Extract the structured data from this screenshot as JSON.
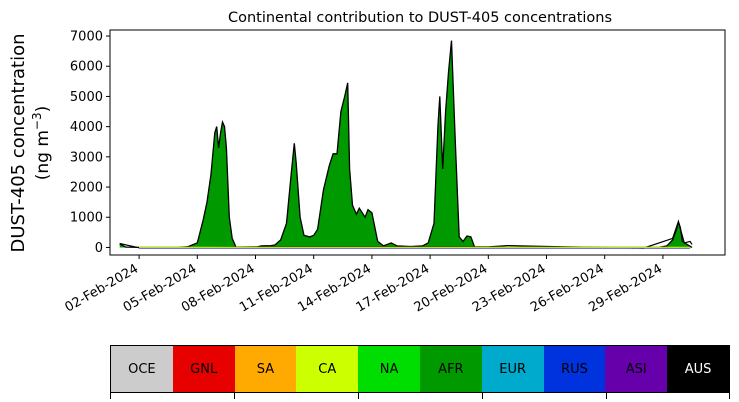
{
  "chart_data": {
    "type": "area",
    "title": "Continental contribution to DUST-405 concentrations",
    "ylabel_main": "DUST-405 concentration",
    "ylabel_unit": "(ng m",
    "ylabel_sup": "−3",
    "ylabel_close": ")",
    "xlabel": "",
    "ylim": [
      -250,
      7200
    ],
    "xlim_days": [
      -0.5,
      31.2
    ],
    "yticks": [
      "0",
      "1000",
      "2000",
      "3000",
      "4000",
      "5000",
      "6000",
      "7000"
    ],
    "ytick_values": [
      0,
      1000,
      2000,
      3000,
      4000,
      5000,
      6000,
      7000
    ],
    "xticks": [
      "02-Feb-2024",
      "05-Feb-2024",
      "08-Feb-2024",
      "11-Feb-2024",
      "14-Feb-2024",
      "17-Feb-2024",
      "20-Feb-2024",
      "23-Feb-2024",
      "26-Feb-2024",
      "29-Feb-2024"
    ],
    "xtick_days": [
      1,
      4,
      7,
      10,
      13,
      16,
      19,
      22,
      25,
      28
    ],
    "series": [
      {
        "name": "AFR",
        "color": "#009900",
        "points": [
          [
            0.0,
            120
          ],
          [
            0.3,
            10
          ],
          [
            1.0,
            0
          ],
          [
            2.0,
            0
          ],
          [
            3.0,
            0
          ],
          [
            3.5,
            20
          ],
          [
            4.0,
            150
          ],
          [
            4.3,
            900
          ],
          [
            4.5,
            1500
          ],
          [
            4.7,
            2400
          ],
          [
            4.9,
            3800
          ],
          [
            5.0,
            4000
          ],
          [
            5.1,
            3300
          ],
          [
            5.2,
            3800
          ],
          [
            5.3,
            4150
          ],
          [
            5.4,
            4000
          ],
          [
            5.5,
            3300
          ],
          [
            5.65,
            1000
          ],
          [
            5.8,
            300
          ],
          [
            6.0,
            0
          ],
          [
            7.0,
            0
          ],
          [
            7.3,
            50
          ],
          [
            7.8,
            60
          ],
          [
            8.0,
            80
          ],
          [
            8.3,
            250
          ],
          [
            8.6,
            800
          ],
          [
            8.85,
            2500
          ],
          [
            9.0,
            3450
          ],
          [
            9.1,
            2800
          ],
          [
            9.3,
            1000
          ],
          [
            9.5,
            400
          ],
          [
            9.8,
            350
          ],
          [
            10.0,
            400
          ],
          [
            10.2,
            600
          ],
          [
            10.5,
            1900
          ],
          [
            10.8,
            2700
          ],
          [
            11.0,
            3100
          ],
          [
            11.2,
            3100
          ],
          [
            11.4,
            4500
          ],
          [
            11.6,
            5000
          ],
          [
            11.75,
            5450
          ],
          [
            11.85,
            2600
          ],
          [
            12.0,
            1400
          ],
          [
            12.2,
            1100
          ],
          [
            12.35,
            1300
          ],
          [
            12.5,
            1150
          ],
          [
            12.65,
            1000
          ],
          [
            12.8,
            1250
          ],
          [
            13.0,
            1150
          ],
          [
            13.3,
            200
          ],
          [
            13.6,
            50
          ],
          [
            14.0,
            150
          ],
          [
            14.3,
            50
          ],
          [
            15.0,
            30
          ],
          [
            15.6,
            50
          ],
          [
            15.9,
            150
          ],
          [
            16.2,
            800
          ],
          [
            16.4,
            4000
          ],
          [
            16.5,
            5000
          ],
          [
            16.65,
            2600
          ],
          [
            16.8,
            4500
          ],
          [
            16.95,
            5800
          ],
          [
            17.1,
            6850
          ],
          [
            17.3,
            3500
          ],
          [
            17.5,
            350
          ],
          [
            17.7,
            200
          ],
          [
            17.9,
            380
          ],
          [
            18.1,
            350
          ],
          [
            18.3,
            0
          ],
          [
            19.0,
            0
          ],
          [
            20.0,
            0
          ],
          [
            21.0,
            0
          ],
          [
            22.0,
            0
          ],
          [
            23.0,
            0
          ],
          [
            24.0,
            0
          ],
          [
            25.0,
            0
          ],
          [
            26.0,
            0
          ],
          [
            27.0,
            0
          ],
          [
            27.8,
            0
          ],
          [
            28.2,
            50
          ],
          [
            28.5,
            250
          ],
          [
            28.7,
            600
          ],
          [
            28.8,
            850
          ],
          [
            28.9,
            650
          ],
          [
            29.0,
            200
          ],
          [
            29.3,
            80
          ],
          [
            29.5,
            0
          ]
        ]
      },
      {
        "name": "AUS",
        "color": "#000000",
        "points": [
          [
            0.0,
            130
          ],
          [
            1.0,
            -10
          ],
          [
            3.0,
            -10
          ],
          [
            7.0,
            20
          ],
          [
            19.0,
            20
          ],
          [
            20.0,
            60
          ],
          [
            23.0,
            20
          ],
          [
            27.0,
            -20
          ],
          [
            28.5,
            300
          ],
          [
            28.8,
            860
          ],
          [
            29.1,
            150
          ],
          [
            29.4,
            200
          ],
          [
            29.5,
            100
          ]
        ]
      }
    ]
  },
  "legend": {
    "items": [
      {
        "label": "OCE",
        "color": "#cccccc",
        "text_color": "#000000"
      },
      {
        "label": "GNL",
        "color": "#e60000",
        "text_color": "#000000"
      },
      {
        "label": "SA",
        "color": "#ffaa00",
        "text_color": "#000000"
      },
      {
        "label": "CA",
        "color": "#ccff00",
        "text_color": "#000000"
      },
      {
        "label": "NA",
        "color": "#00dd00",
        "text_color": "#000000"
      },
      {
        "label": "AFR",
        "color": "#009900",
        "text_color": "#000000"
      },
      {
        "label": "EUR",
        "color": "#00aacc",
        "text_color": "#000000"
      },
      {
        "label": "RUS",
        "color": "#0033dd",
        "text_color": "#000000"
      },
      {
        "label": "ASI",
        "color": "#6600aa",
        "text_color": "#000000"
      },
      {
        "label": "AUS",
        "color": "#000000",
        "text_color": "#ffffff"
      }
    ]
  }
}
